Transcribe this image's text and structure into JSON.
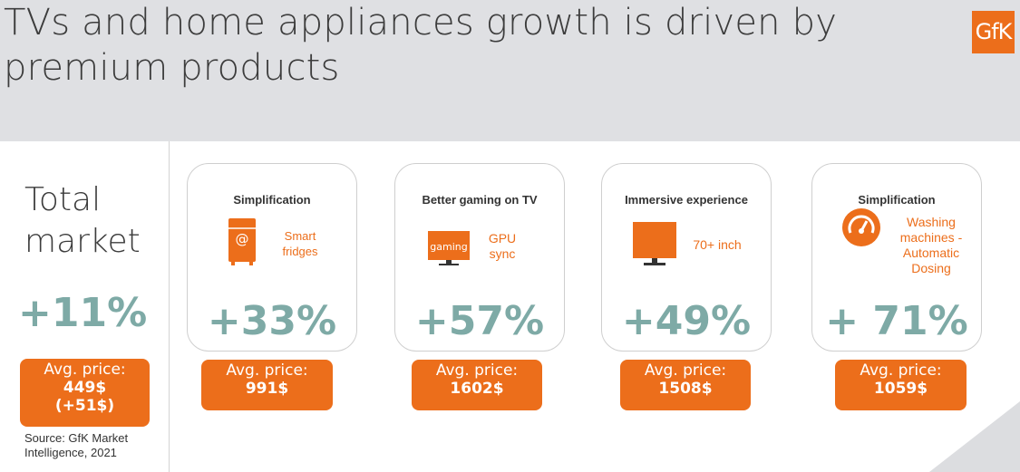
{
  "header": {
    "title_line1": "TVs and home appliances growth is driven by",
    "title_line2": "premium products",
    "logo_text": "GfK"
  },
  "total": {
    "label_line1": "Total",
    "label_line2": "market",
    "growth": "+11%",
    "price_label": "Avg. price:",
    "price_value": "449$",
    "price_change": "(+51$)",
    "source_line1": "Source: GfK Market",
    "source_line2": "Intelligence, 2021"
  },
  "cards": [
    {
      "title": "Simplification",
      "icon": "smart-fridge-icon",
      "icon_text": "@",
      "desc_line1": "Smart",
      "desc_line2": "fridges",
      "desc_line3": "",
      "growth": "+33%",
      "price_label": "Avg. price:",
      "price_value": "991$"
    },
    {
      "title": "Better gaming on TV",
      "icon": "gaming-tv-icon",
      "icon_text": "gaming",
      "desc_line1": "GPU",
      "desc_line2": "sync",
      "desc_line3": "",
      "growth": "+57%",
      "price_label": "Avg. price:",
      "price_value": "1602$"
    },
    {
      "title": "Immersive experience",
      "icon": "tv-icon",
      "icon_text": "",
      "desc_line1": "70+ inch",
      "desc_line2": "",
      "desc_line3": "",
      "growth": "+49%",
      "price_label": "Avg. price:",
      "price_value": "1508$"
    },
    {
      "title": "Simplification",
      "icon": "gauge-icon",
      "icon_text": "",
      "desc_line1": "Washing",
      "desc_line2": "machines -",
      "desc_line3": "Automatic",
      "desc_line4": "Dosing",
      "growth": "+ 71%",
      "price_label": "Avg. price:",
      "price_value": "1059$"
    }
  ],
  "colors": {
    "accent": "#ec6e1b",
    "teal": "#7eaaa6"
  }
}
